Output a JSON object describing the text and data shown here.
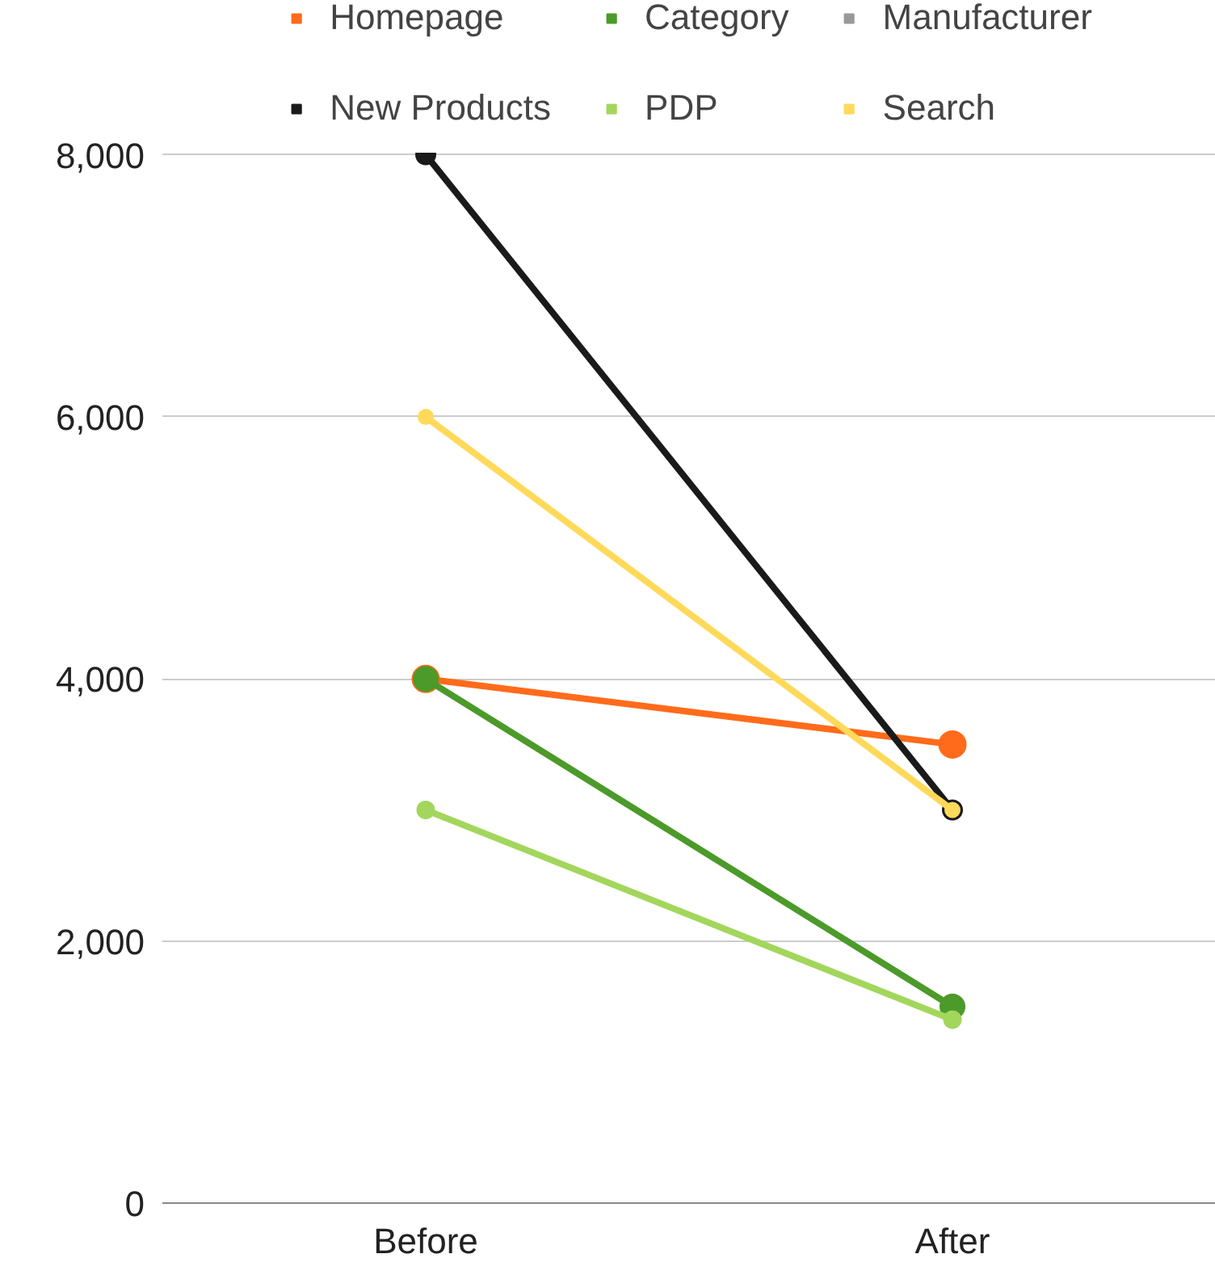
{
  "chart_data": {
    "type": "line",
    "categories": [
      "Before",
      "After"
    ],
    "ylim": [
      0,
      8000
    ],
    "yticks": [
      {
        "value": 0,
        "label": "0"
      },
      {
        "value": 2000,
        "label": "2,000"
      },
      {
        "value": 4000,
        "label": "4,000"
      },
      {
        "value": 6000,
        "label": "6,000"
      },
      {
        "value": 8000,
        "label": "8,000"
      }
    ],
    "grid": "y",
    "legend": "top",
    "marker": "circle",
    "line_style": "solid",
    "series": [
      {
        "name": "Homepage",
        "color": "#ff6b1a",
        "values": [
          4000,
          3500
        ]
      },
      {
        "name": "Category",
        "color": "#4c9a2a",
        "values": [
          4000,
          1500
        ]
      },
      {
        "name": "Manufacturer",
        "color": "#999999",
        "values": [
          null,
          null
        ]
      },
      {
        "name": "New Products",
        "color": "#1a1a1a",
        "values": [
          8000,
          3000
        ]
      },
      {
        "name": "PDP",
        "color": "#a3d65c",
        "values": [
          3000,
          1400
        ]
      },
      {
        "name": "Search",
        "color": "#ffd95a",
        "values": [
          6000,
          3000
        ]
      }
    ]
  }
}
